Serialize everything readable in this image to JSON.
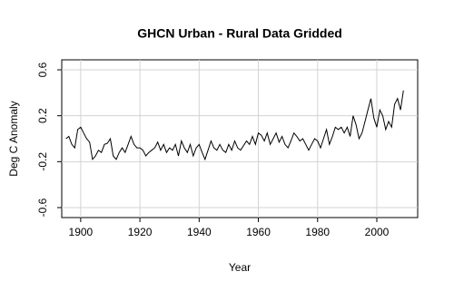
{
  "chart_data": {
    "type": "line",
    "title": "GHCN Urban - Rural Data Gridded",
    "x_label": "Year",
    "y_label": "Deg C Anomaly",
    "x": [
      1895,
      1896,
      1897,
      1898,
      1899,
      1900,
      1901,
      1902,
      1903,
      1904,
      1905,
      1906,
      1907,
      1908,
      1909,
      1910,
      1911,
      1912,
      1913,
      1914,
      1915,
      1916,
      1917,
      1918,
      1919,
      1920,
      1921,
      1922,
      1923,
      1924,
      1925,
      1926,
      1927,
      1928,
      1929,
      1930,
      1931,
      1932,
      1933,
      1934,
      1935,
      1936,
      1937,
      1938,
      1939,
      1940,
      1941,
      1942,
      1943,
      1944,
      1945,
      1946,
      1947,
      1948,
      1949,
      1950,
      1951,
      1952,
      1953,
      1954,
      1955,
      1956,
      1957,
      1958,
      1959,
      1960,
      1961,
      1962,
      1963,
      1964,
      1965,
      1966,
      1967,
      1968,
      1969,
      1970,
      1971,
      1972,
      1973,
      1974,
      1975,
      1976,
      1977,
      1978,
      1979,
      1980,
      1981,
      1982,
      1983,
      1984,
      1985,
      1986,
      1987,
      1988,
      1989,
      1990,
      1991,
      1992,
      1993,
      1994,
      1995,
      1996,
      1997,
      1998,
      1999,
      2000,
      2001,
      2002,
      2003,
      2004,
      2005,
      2006,
      2007,
      2008,
      2009
    ],
    "series": [
      {
        "color": "#000000",
        "values": [
          0.0,
          0.02,
          -0.05,
          -0.08,
          0.08,
          0.1,
          0.05,
          0.0,
          -0.03,
          -0.18,
          -0.15,
          -0.1,
          -0.12,
          -0.05,
          -0.04,
          0.0,
          -0.15,
          -0.18,
          -0.12,
          -0.08,
          -0.12,
          -0.05,
          0.02,
          -0.05,
          -0.08,
          -0.08,
          -0.1,
          -0.15,
          -0.12,
          -0.1,
          -0.08,
          -0.03,
          -0.1,
          -0.05,
          -0.12,
          -0.08,
          -0.1,
          -0.05,
          -0.15,
          -0.02,
          -0.08,
          -0.12,
          -0.05,
          -0.15,
          -0.08,
          -0.05,
          -0.12,
          -0.18,
          -0.1,
          -0.02,
          -0.08,
          -0.1,
          -0.05,
          -0.1,
          -0.12,
          -0.05,
          -0.1,
          -0.02,
          -0.08,
          -0.1,
          -0.06,
          -0.02,
          -0.05,
          0.02,
          -0.05,
          0.05,
          0.03,
          -0.02,
          0.05,
          -0.05,
          0.0,
          0.05,
          -0.03,
          0.02,
          -0.05,
          -0.08,
          -0.02,
          0.05,
          0.02,
          -0.02,
          0.0,
          -0.05,
          -0.1,
          -0.05,
          0.0,
          -0.02,
          -0.08,
          0.0,
          0.08,
          -0.05,
          0.02,
          0.1,
          0.08,
          0.1,
          0.05,
          0.1,
          0.02,
          0.2,
          0.12,
          0.0,
          0.05,
          0.15,
          0.25,
          0.35,
          0.18,
          0.1,
          0.25,
          0.2,
          0.08,
          0.15,
          0.1,
          0.3,
          0.35,
          0.25,
          0.42
        ]
      }
    ],
    "xlim": [
      1893.6,
      2013.8
    ],
    "ylim": [
      -0.687,
      0.687
    ],
    "xticks": [
      1900,
      1920,
      1940,
      1960,
      1980,
      2000
    ],
    "yticks": [
      -0.6,
      -0.2,
      0.2,
      0.6
    ],
    "grid": true
  }
}
